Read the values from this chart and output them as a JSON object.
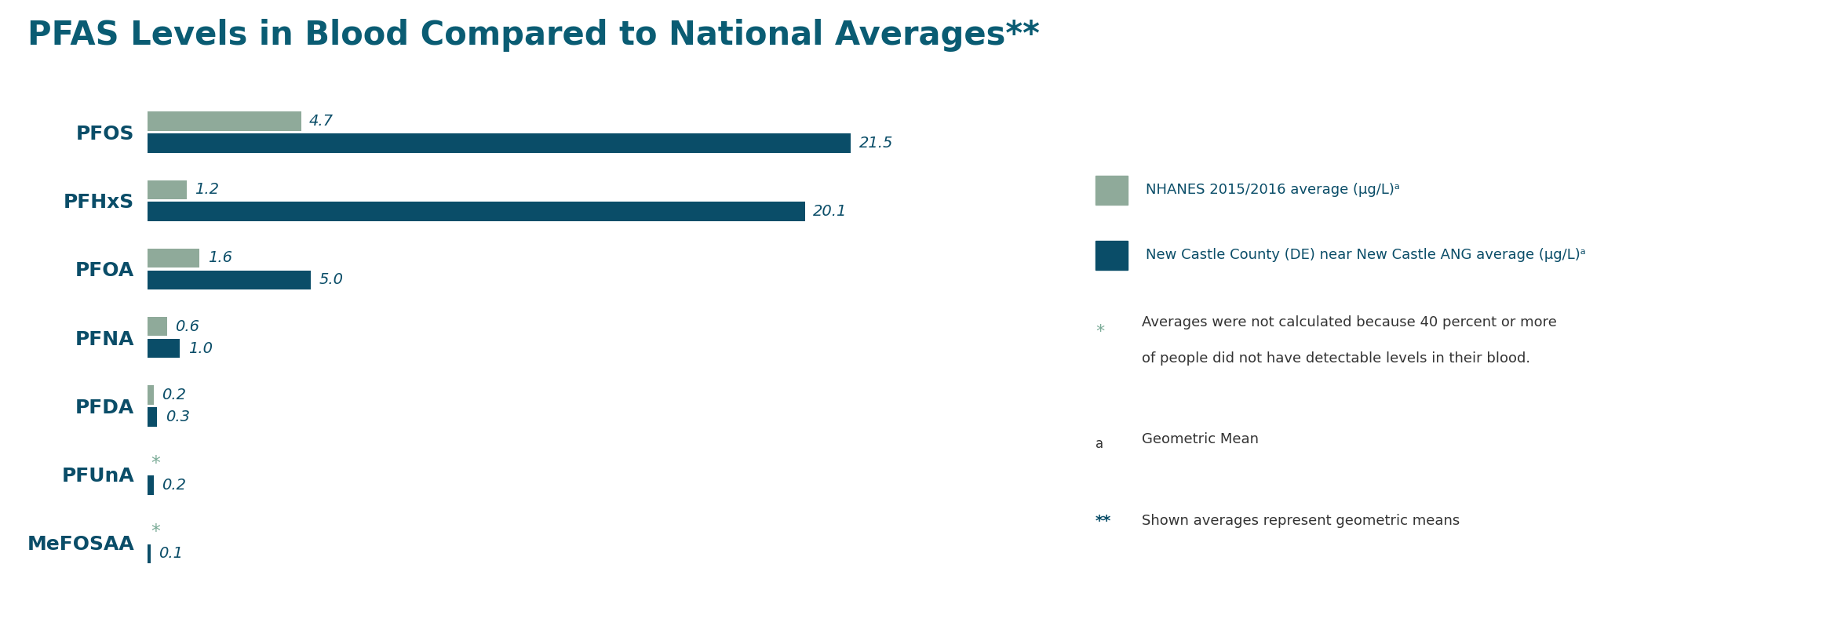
{
  "title": "PFAS Levels in Blood Compared to National Averages**",
  "title_color": "#0a5c73",
  "title_fontsize": 30,
  "categories": [
    "PFOS",
    "PFHxS",
    "PFOA",
    "PFNA",
    "PFDA",
    "PFUnA",
    "MeFOSAA"
  ],
  "national_avg": [
    4.7,
    1.2,
    1.6,
    0.6,
    0.2,
    null,
    null
  ],
  "new_castle_avg": [
    21.5,
    20.1,
    5.0,
    1.0,
    0.3,
    0.2,
    0.1
  ],
  "national_labels": [
    "4.7",
    "1.2",
    "1.6",
    "0.6",
    "0.2",
    "*",
    "*"
  ],
  "new_castle_labels": [
    "21.5",
    "20.1",
    "5.0",
    "1.0",
    "0.3",
    "0.2",
    "0.1"
  ],
  "national_color": "#8faa9a",
  "new_castle_color": "#0a4d68",
  "label_color": "#0a4d68",
  "star_color": "#7aab97",
  "category_color": "#0a4d68",
  "bar_height": 0.28,
  "legend_nhanes": "NHANES 2015/2016 average (μg/L)ᵃ",
  "legend_newcastle": "New Castle County (DE) near New Castle ANG average (μg/L)ᵃ",
  "legend_star_line1": "Averages were not calculated because 40 percent or more",
  "legend_star_line2": "of people did not have detectable levels in their blood.",
  "legend_a_text": "Geometric Mean",
  "legend_double_star_text": "Shown averages represent geometric means",
  "bg_color": "#ffffff",
  "category_fontsize": 18,
  "legend_fontsize": 13,
  "annotation_fontsize": 14,
  "note_color": "#333333"
}
